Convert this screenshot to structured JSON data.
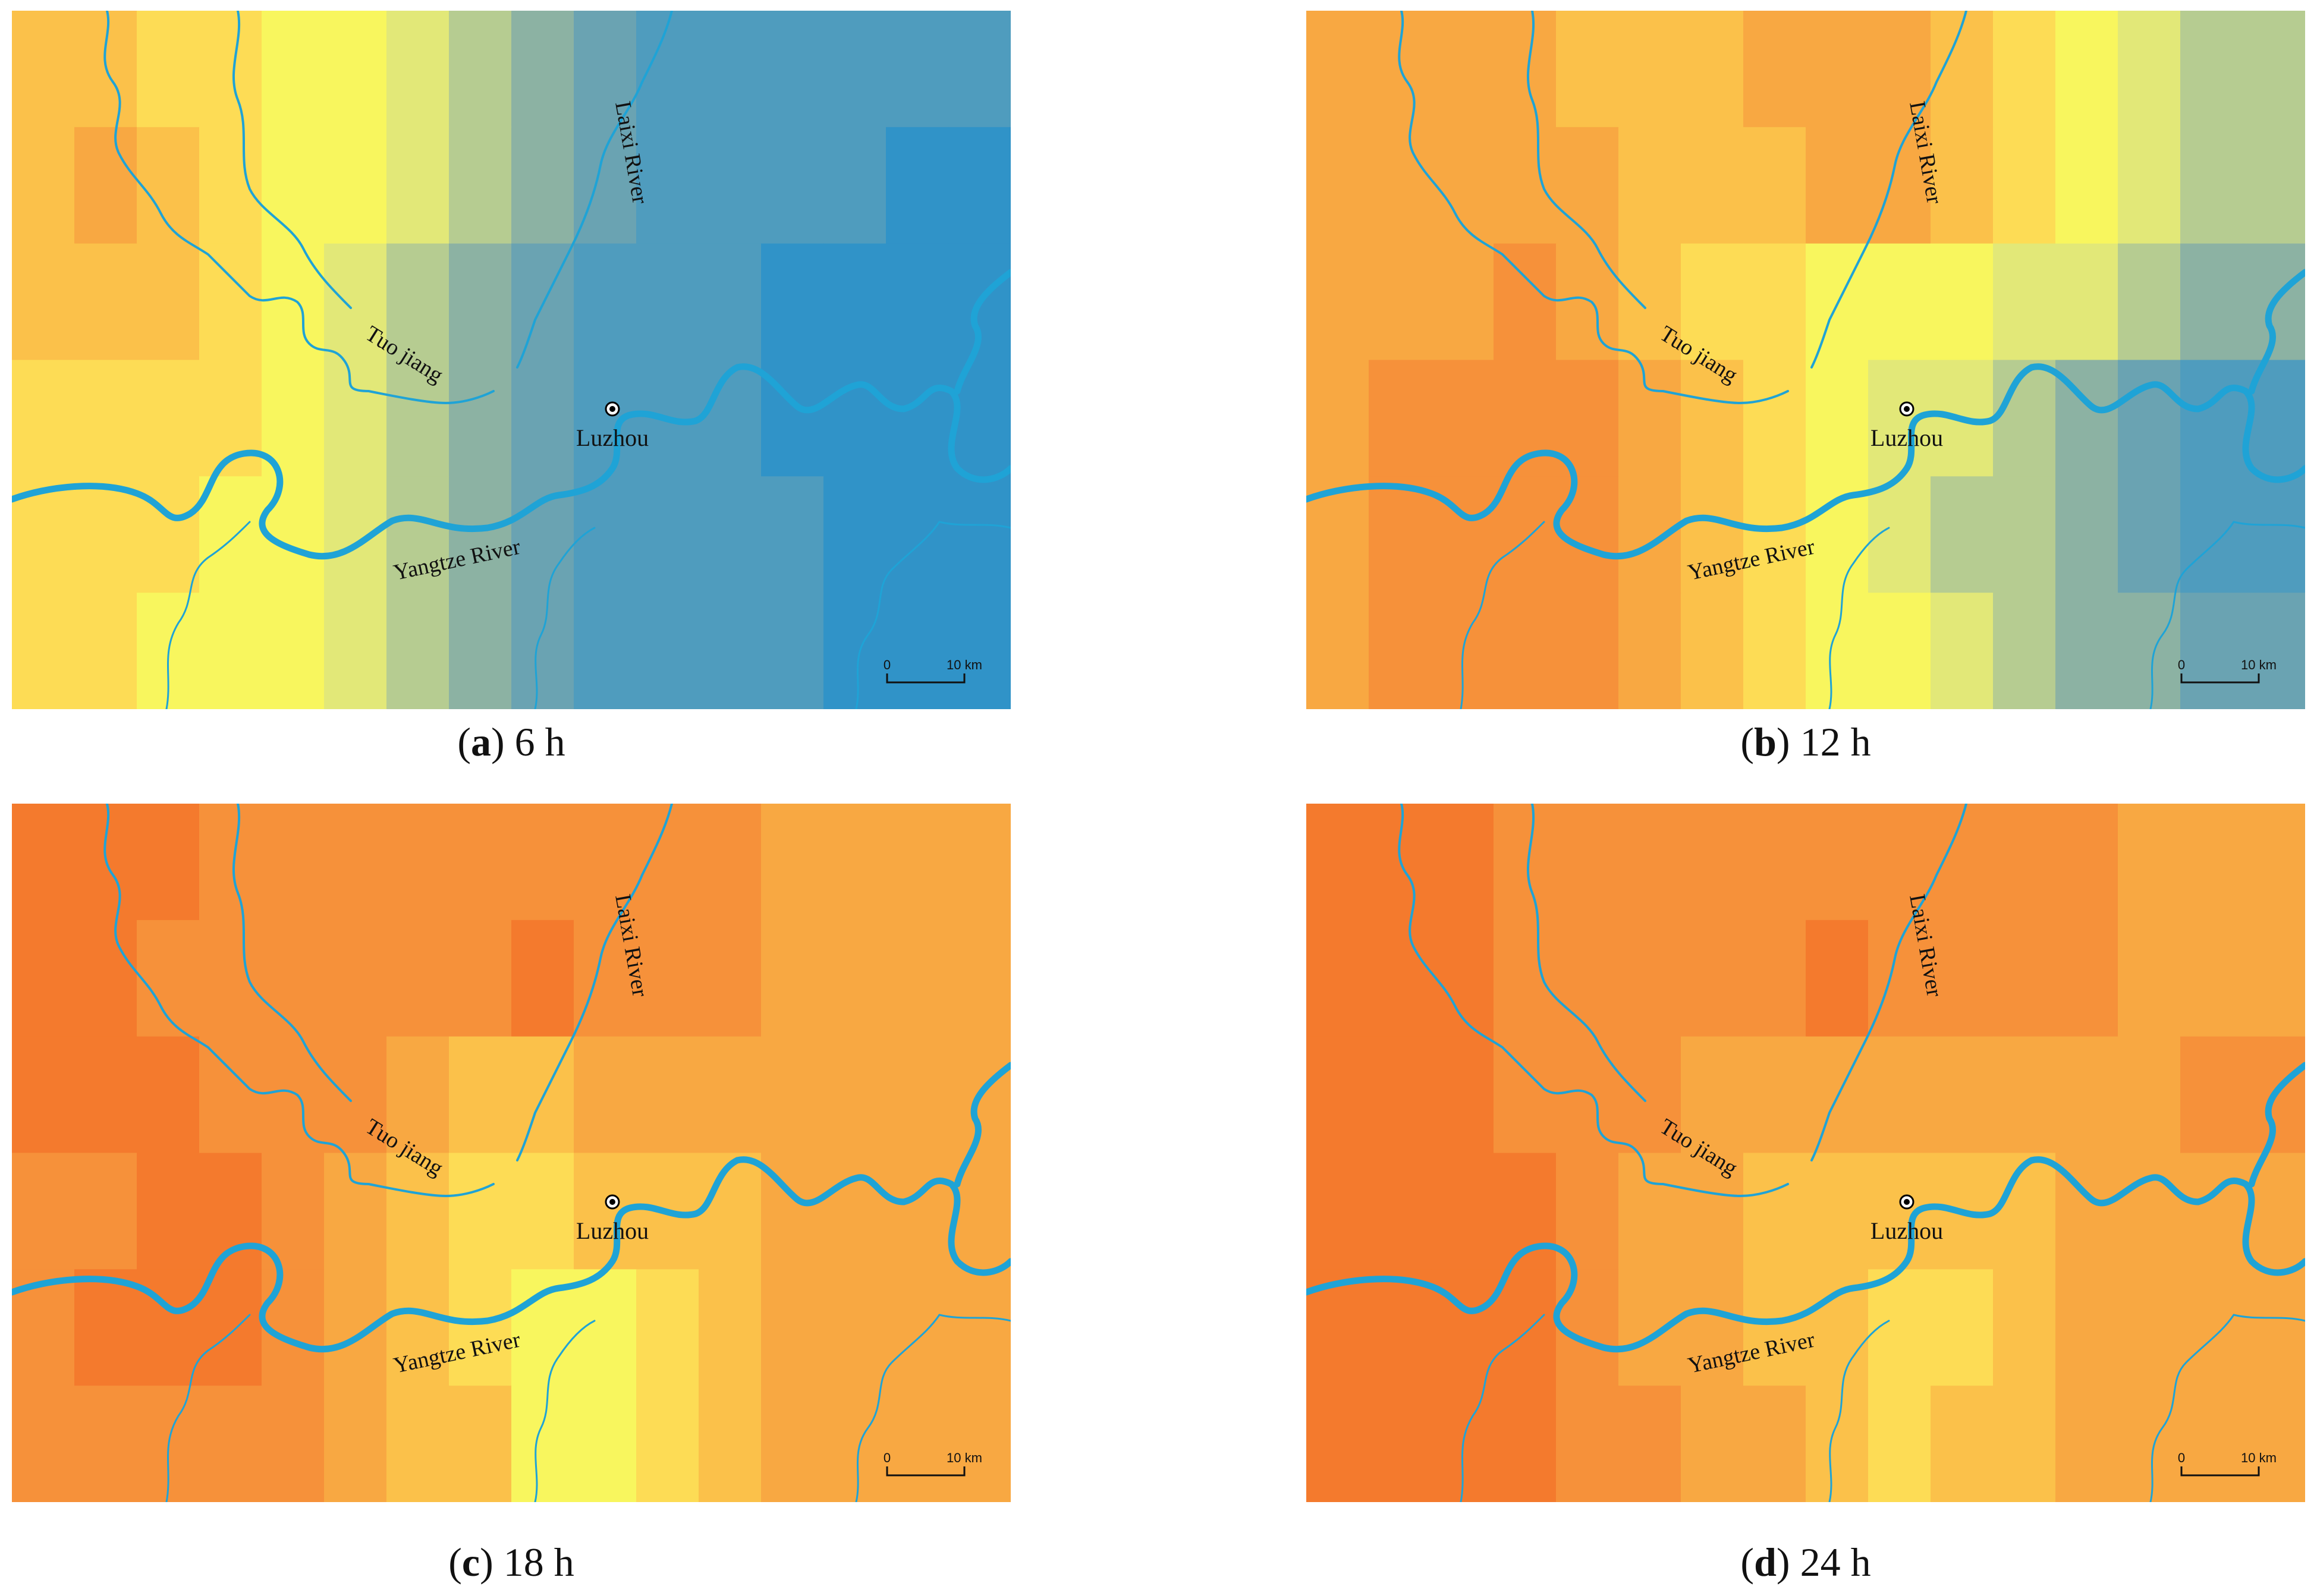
{
  "labels": {
    "tributary_north": "Laixi River",
    "tributary_west": "Tuo jiang",
    "main_river": "Yangtze River",
    "city": "Luzhou"
  },
  "scale_bar": {
    "start": "0",
    "end": "10 km"
  },
  "colors": {
    "river": "#1fa3d6",
    "city_marker": "#000000",
    "ramp": [
      "#f47a2d",
      "#f6913a",
      "#f8a842",
      "#fbc14a",
      "#fddc55",
      "#f8f65e",
      "#e2e878",
      "#b6cc91",
      "#8cb2a3",
      "#6aa3b2",
      "#4f9cbe",
      "#3093c8"
    ]
  },
  "panels": [
    {
      "letter": "a",
      "caption": "6 h",
      "surface": [
        [
          3,
          3,
          4,
          4,
          5,
          5,
          6,
          7,
          8,
          9,
          10,
          10,
          10,
          10,
          10,
          10
        ],
        [
          3,
          2,
          3,
          4,
          5,
          5,
          6,
          7,
          8,
          9,
          10,
          10,
          10,
          10,
          11,
          11
        ],
        [
          3,
          3,
          3,
          4,
          5,
          6,
          7,
          8,
          9,
          10,
          10,
          10,
          11,
          11,
          11,
          11
        ],
        [
          4,
          4,
          4,
          4,
          5,
          6,
          7,
          8,
          9,
          10,
          10,
          10,
          11,
          11,
          11,
          11
        ],
        [
          4,
          4,
          4,
          5,
          5,
          6,
          7,
          8,
          9,
          10,
          10,
          10,
          10,
          11,
          11,
          11
        ],
        [
          4,
          4,
          5,
          5,
          5,
          6,
          7,
          8,
          9,
          10,
          10,
          10,
          10,
          11,
          11,
          11
        ]
      ]
    },
    {
      "letter": "b",
      "caption": "12 h",
      "surface": [
        [
          2,
          2,
          2,
          2,
          3,
          3,
          3,
          2,
          2,
          2,
          3,
          4,
          5,
          6,
          7,
          7
        ],
        [
          2,
          2,
          2,
          2,
          2,
          3,
          3,
          3,
          2,
          2,
          3,
          4,
          5,
          6,
          7,
          7
        ],
        [
          2,
          2,
          2,
          1,
          2,
          3,
          4,
          4,
          5,
          5,
          5,
          6,
          6,
          7,
          8,
          8
        ],
        [
          2,
          1,
          1,
          1,
          1,
          2,
          3,
          4,
          5,
          6,
          6,
          7,
          8,
          9,
          10,
          10
        ],
        [
          2,
          1,
          1,
          1,
          1,
          2,
          3,
          4,
          5,
          6,
          7,
          7,
          8,
          9,
          10,
          10
        ],
        [
          2,
          1,
          1,
          1,
          1,
          2,
          3,
          4,
          5,
          5,
          6,
          7,
          8,
          8,
          9,
          9
        ]
      ]
    },
    {
      "letter": "c",
      "caption": "18 h",
      "surface": [
        [
          0,
          0,
          0,
          1,
          1,
          1,
          1,
          1,
          1,
          1,
          1,
          1,
          2,
          2,
          2,
          2
        ],
        [
          0,
          0,
          1,
          1,
          1,
          1,
          1,
          1,
          0,
          1,
          1,
          1,
          2,
          2,
          2,
          2
        ],
        [
          0,
          0,
          0,
          1,
          1,
          1,
          2,
          3,
          3,
          2,
          2,
          2,
          2,
          2,
          2,
          2
        ],
        [
          1,
          1,
          0,
          0,
          1,
          2,
          3,
          4,
          4,
          3,
          3,
          3,
          2,
          2,
          2,
          2
        ],
        [
          1,
          0,
          0,
          0,
          1,
          2,
          3,
          4,
          5,
          5,
          4,
          3,
          2,
          2,
          2,
          2
        ],
        [
          1,
          1,
          1,
          1,
          1,
          2,
          3,
          3,
          5,
          5,
          4,
          3,
          2,
          2,
          2,
          2
        ]
      ]
    },
    {
      "letter": "d",
      "caption": "24 h",
      "surface": [
        [
          0,
          0,
          0,
          1,
          1,
          1,
          1,
          1,
          1,
          1,
          1,
          1,
          1,
          2,
          2,
          2
        ],
        [
          0,
          0,
          0,
          1,
          1,
          1,
          1,
          1,
          0,
          1,
          1,
          1,
          1,
          2,
          2,
          2
        ],
        [
          0,
          0,
          0,
          1,
          1,
          1,
          2,
          2,
          2,
          2,
          2,
          2,
          2,
          2,
          1,
          1
        ],
        [
          0,
          0,
          0,
          0,
          1,
          2,
          2,
          3,
          3,
          3,
          3,
          3,
          2,
          2,
          2,
          2
        ],
        [
          0,
          0,
          0,
          0,
          1,
          2,
          2,
          3,
          3,
          4,
          4,
          3,
          2,
          2,
          2,
          2
        ],
        [
          0,
          0,
          0,
          0,
          1,
          1,
          2,
          2,
          3,
          4,
          3,
          3,
          2,
          2,
          2,
          2
        ]
      ]
    }
  ]
}
